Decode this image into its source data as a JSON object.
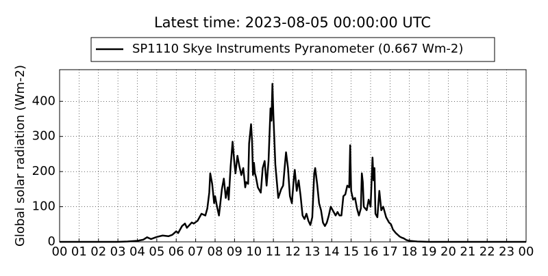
{
  "chart_data": {
    "type": "line",
    "title": "Latest time: 2023-08-05 00:00:00 UTC",
    "y_label": "Global solar radiation (Wm-2)",
    "grid": true,
    "legend": "top",
    "xlim": [
      0,
      24
    ],
    "ylim": [
      0,
      490
    ],
    "yticks": [
      0,
      100,
      200,
      300,
      400
    ],
    "xticks": [
      {
        "value": 0,
        "label": "00"
      },
      {
        "value": 1,
        "label": "01"
      },
      {
        "value": 2,
        "label": "02"
      },
      {
        "value": 3,
        "label": "03"
      },
      {
        "value": 4,
        "label": "04"
      },
      {
        "value": 5,
        "label": "05"
      },
      {
        "value": 6,
        "label": "06"
      },
      {
        "value": 7,
        "label": "07"
      },
      {
        "value": 8,
        "label": "08"
      },
      {
        "value": 9,
        "label": "09"
      },
      {
        "value": 10,
        "label": "10"
      },
      {
        "value": 11,
        "label": "11"
      },
      {
        "value": 12,
        "label": "12"
      },
      {
        "value": 13,
        "label": "13"
      },
      {
        "value": 14,
        "label": "14"
      },
      {
        "value": 15,
        "label": "15"
      },
      {
        "value": 16,
        "label": "16"
      },
      {
        "value": 17,
        "label": "17"
      },
      {
        "value": 18,
        "label": "18"
      },
      {
        "value": 19,
        "label": "19"
      },
      {
        "value": 20,
        "label": "20"
      },
      {
        "value": 21,
        "label": "21"
      },
      {
        "value": 22,
        "label": "22"
      },
      {
        "value": 23,
        "label": "23"
      },
      {
        "value": 24,
        "label": "00"
      }
    ],
    "x": [
      0,
      3.0,
      3.5,
      4.0,
      4.3,
      4.5,
      4.7,
      5.0,
      5.3,
      5.6,
      5.8,
      6.0,
      6.1,
      6.3,
      6.45,
      6.55,
      6.8,
      6.9,
      7.1,
      7.3,
      7.5,
      7.6,
      7.7,
      7.75,
      7.85,
      7.95,
      8.0,
      8.1,
      8.2,
      8.35,
      8.45,
      8.55,
      8.65,
      8.7,
      8.8,
      8.9,
      9.0,
      9.05,
      9.15,
      9.25,
      9.35,
      9.45,
      9.55,
      9.6,
      9.7,
      9.75,
      9.85,
      9.9,
      9.95,
      10.0,
      10.05,
      10.1,
      10.2,
      10.35,
      10.45,
      10.55,
      10.6,
      10.65,
      10.75,
      10.85,
      10.9,
      10.95,
      11.0,
      11.1,
      11.25,
      11.4,
      11.5,
      11.6,
      11.65,
      11.75,
      11.85,
      11.95,
      12.05,
      12.1,
      12.2,
      12.3,
      12.4,
      12.5,
      12.6,
      12.7,
      12.8,
      12.9,
      13.0,
      13.1,
      13.15,
      13.25,
      13.35,
      13.45,
      13.55,
      13.65,
      13.75,
      13.85,
      13.95,
      14.0,
      14.1,
      14.2,
      14.3,
      14.4,
      14.5,
      14.6,
      14.7,
      14.8,
      14.9,
      14.95,
      15.0,
      15.1,
      15.2,
      15.3,
      15.4,
      15.5,
      15.55,
      15.6,
      15.65,
      15.8,
      15.9,
      16.0,
      16.1,
      16.15,
      16.2,
      16.25,
      16.35,
      16.45,
      16.55,
      16.65,
      16.8,
      16.95,
      17.05,
      17.15,
      17.3,
      17.5,
      17.6,
      17.7,
      17.85,
      18.0,
      18.4,
      19.0,
      24
    ],
    "series": [
      {
        "name": "SP1110 Skye Instruments Pyranometer (0.667 Wm-2)",
        "color": "#000000",
        "values": [
          0,
          0,
          1,
          3,
          6,
          13,
          8,
          14,
          18,
          16,
          20,
          30,
          25,
          45,
          52,
          40,
          55,
          52,
          60,
          80,
          75,
          95,
          140,
          195,
          165,
          110,
          130,
          100,
          75,
          150,
          180,
          125,
          155,
          120,
          215,
          285,
          220,
          195,
          245,
          215,
          190,
          210,
          155,
          170,
          165,
          280,
          335,
          290,
          190,
          225,
          195,
          185,
          155,
          140,
          210,
          230,
          195,
          160,
          230,
          380,
          345,
          450,
          360,
          220,
          125,
          150,
          160,
          225,
          255,
          210,
          130,
          110,
          180,
          205,
          145,
          175,
          130,
          75,
          65,
          80,
          60,
          48,
          70,
          195,
          210,
          165,
          110,
          90,
          55,
          45,
          55,
          75,
          100,
          95,
          85,
          75,
          85,
          75,
          75,
          130,
          135,
          160,
          155,
          275,
          145,
          120,
          125,
          95,
          75,
          95,
          195,
          170,
          100,
          90,
          120,
          100,
          240,
          175,
          210,
          80,
          70,
          145,
          90,
          100,
          70,
          55,
          50,
          35,
          25,
          15,
          12,
          10,
          5,
          3,
          1,
          0,
          0
        ]
      }
    ]
  }
}
